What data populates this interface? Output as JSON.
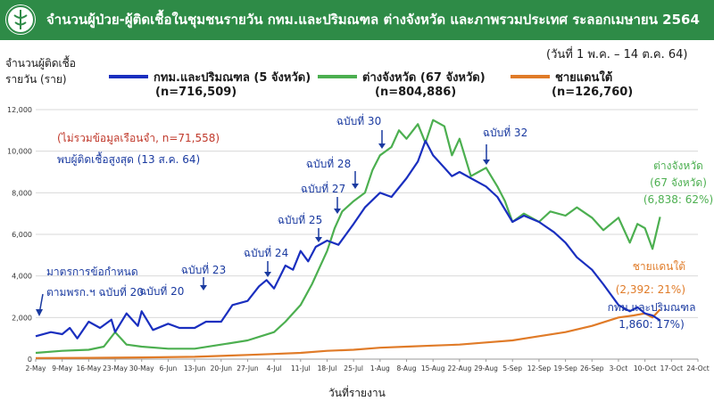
{
  "header": {
    "title": "จำนวนผู้ป่วย-ผู้ติดเชื้อในชุมชนรายวัน กทม.และปริมณฑล ต่างจังหวัด และภาพรวมประเทศ ระลอกเมษายน 2564",
    "bg_color": "#2e8b47"
  },
  "date_range": "(วันที่ 1 พ.ค. – 14 ต.ค. 64)",
  "y_axis_label": {
    "line1": "จำนวนผู้ติดเชื้อ",
    "line2": "รายวัน (ราย)"
  },
  "legend": [
    {
      "name": "กทม.และปริมณฑล (5 จังหวัด)",
      "n": "(n=716,509)",
      "color": "#1a2fbf"
    },
    {
      "name": "ต่างจังหวัด (67 จังหวัด)",
      "n": "(n=804,886)",
      "color": "#4caf50"
    },
    {
      "name": "ชายแดนใต้",
      "n": "(n=126,760)",
      "color": "#e07b28"
    }
  ],
  "notes": {
    "exclude": "(ไม่รวมข้อมูลเรือนจำ, n=71,558)",
    "peak": "พบผู้ติดเชื้อสูงสุด (13 ส.ค. 64)",
    "measure_line1": "มาตรการข้อกำหนด",
    "measure_line2": "ตามพรก.ฯ ฉบับที่ 20"
  },
  "x_axis_title": "วันที่รายงาน",
  "chart_data": {
    "type": "line",
    "ylim": [
      0,
      12000
    ],
    "yticks": [
      0,
      2000,
      4000,
      6000,
      8000,
      10000,
      12000
    ],
    "xticks": [
      "2-May",
      "9-May",
      "16-May",
      "23-May",
      "30-May",
      "6-Jun",
      "13-Jun",
      "20-Jun",
      "27-Jun",
      "4-Jul",
      "11-Jul",
      "18-Jul",
      "25-Jul",
      "1-Aug",
      "8-Aug",
      "15-Aug",
      "22-Aug",
      "29-Aug",
      "5-Sep",
      "12-Sep",
      "19-Sep",
      "26-Sep",
      "3-Oct",
      "10-Oct",
      "17-Oct",
      "24-Oct"
    ],
    "xlabel": "วันที่รายงาน",
    "ylabel": "จำนวนผู้ติดเชื้อรายวัน (ราย)",
    "grid": true,
    "series": [
      {
        "name": "กทม.และปริมณฑล (5 จังหวัด)",
        "color": "#1a2fbf",
        "points": [
          [
            "2-May",
            1100
          ],
          [
            "6-May",
            1300
          ],
          [
            "9-May",
            1200
          ],
          [
            "11-May",
            1500
          ],
          [
            "13-May",
            1000
          ],
          [
            "16-May",
            1800
          ],
          [
            "19-May",
            1500
          ],
          [
            "22-May",
            1900
          ],
          [
            "23-May",
            1300
          ],
          [
            "26-May",
            2200
          ],
          [
            "29-May",
            1600
          ],
          [
            "30-May",
            2300
          ],
          [
            "2-Jun",
            1400
          ],
          [
            "6-Jun",
            1700
          ],
          [
            "9-Jun",
            1500
          ],
          [
            "13-Jun",
            1500
          ],
          [
            "16-Jun",
            1800
          ],
          [
            "20-Jun",
            1800
          ],
          [
            "23-Jun",
            2600
          ],
          [
            "27-Jun",
            2800
          ],
          [
            "30-Jun",
            3500
          ],
          [
            "2-Jul",
            3800
          ],
          [
            "4-Jul",
            3400
          ],
          [
            "7-Jul",
            4500
          ],
          [
            "9-Jul",
            4300
          ],
          [
            "11-Jul",
            5200
          ],
          [
            "13-Jul",
            4700
          ],
          [
            "15-Jul",
            5400
          ],
          [
            "18-Jul",
            5700
          ],
          [
            "21-Jul",
            5500
          ],
          [
            "25-Jul",
            6500
          ],
          [
            "28-Jul",
            7300
          ],
          [
            "1-Aug",
            8000
          ],
          [
            "4-Aug",
            7800
          ],
          [
            "8-Aug",
            8700
          ],
          [
            "11-Aug",
            9500
          ],
          [
            "13-Aug",
            10500
          ],
          [
            "15-Aug",
            9800
          ],
          [
            "18-Aug",
            9200
          ],
          [
            "20-Aug",
            8800
          ],
          [
            "22-Aug",
            9000
          ],
          [
            "25-Aug",
            8700
          ],
          [
            "29-Aug",
            8300
          ],
          [
            "1-Sep",
            7800
          ],
          [
            "5-Sep",
            6600
          ],
          [
            "8-Sep",
            6900
          ],
          [
            "12-Sep",
            6600
          ],
          [
            "16-Sep",
            6100
          ],
          [
            "19-Sep",
            5600
          ],
          [
            "22-Sep",
            4900
          ],
          [
            "26-Sep",
            4300
          ],
          [
            "29-Sep",
            3600
          ],
          [
            "3-Oct",
            2600
          ],
          [
            "6-Oct",
            2300
          ],
          [
            "8-Oct",
            2500
          ],
          [
            "10-Oct",
            2200
          ],
          [
            "12-Oct",
            2100
          ],
          [
            "14-Oct",
            1860
          ]
        ]
      },
      {
        "name": "ต่างจังหวัด (67 จังหวัด)",
        "color": "#4caf50",
        "points": [
          [
            "2-May",
            300
          ],
          [
            "9-May",
            400
          ],
          [
            "16-May",
            450
          ],
          [
            "20-May",
            600
          ],
          [
            "23-May",
            1300
          ],
          [
            "26-May",
            700
          ],
          [
            "30-May",
            600
          ],
          [
            "6-Jun",
            500
          ],
          [
            "13-Jun",
            500
          ],
          [
            "20-Jun",
            700
          ],
          [
            "27-Jun",
            900
          ],
          [
            "4-Jul",
            1300
          ],
          [
            "7-Jul",
            1800
          ],
          [
            "11-Jul",
            2600
          ],
          [
            "14-Jul",
            3600
          ],
          [
            "16-Jul",
            4400
          ],
          [
            "18-Jul",
            5200
          ],
          [
            "20-Jul",
            6300
          ],
          [
            "22-Jul",
            7100
          ],
          [
            "25-Jul",
            7600
          ],
          [
            "28-Jul",
            8000
          ],
          [
            "30-Jul",
            9100
          ],
          [
            "1-Aug",
            9800
          ],
          [
            "4-Aug",
            10200
          ],
          [
            "6-Aug",
            11000
          ],
          [
            "8-Aug",
            10600
          ],
          [
            "11-Aug",
            11300
          ],
          [
            "13-Aug",
            10400
          ],
          [
            "15-Aug",
            11500
          ],
          [
            "18-Aug",
            11200
          ],
          [
            "20-Aug",
            9800
          ],
          [
            "22-Aug",
            10600
          ],
          [
            "25-Aug",
            8800
          ],
          [
            "27-Aug",
            9000
          ],
          [
            "29-Aug",
            9200
          ],
          [
            "1-Sep",
            8300
          ],
          [
            "3-Sep",
            7600
          ],
          [
            "5-Sep",
            6600
          ],
          [
            "8-Sep",
            7000
          ],
          [
            "12-Sep",
            6600
          ],
          [
            "15-Sep",
            7100
          ],
          [
            "19-Sep",
            6900
          ],
          [
            "22-Sep",
            7300
          ],
          [
            "26-Sep",
            6800
          ],
          [
            "29-Sep",
            6200
          ],
          [
            "3-Oct",
            6800
          ],
          [
            "6-Oct",
            5600
          ],
          [
            "8-Oct",
            6500
          ],
          [
            "10-Oct",
            6300
          ],
          [
            "12-Oct",
            5300
          ],
          [
            "14-Oct",
            6838
          ]
        ]
      },
      {
        "name": "ชายแดนใต้",
        "color": "#e07b28",
        "points": [
          [
            "2-May",
            50
          ],
          [
            "16-May",
            60
          ],
          [
            "30-May",
            80
          ],
          [
            "13-Jun",
            110
          ],
          [
            "27-Jun",
            200
          ],
          [
            "4-Jul",
            250
          ],
          [
            "11-Jul",
            300
          ],
          [
            "18-Jul",
            400
          ],
          [
            "25-Jul",
            450
          ],
          [
            "1-Aug",
            550
          ],
          [
            "8-Aug",
            600
          ],
          [
            "15-Aug",
            650
          ],
          [
            "22-Aug",
            700
          ],
          [
            "29-Aug",
            800
          ],
          [
            "5-Sep",
            900
          ],
          [
            "12-Sep",
            1100
          ],
          [
            "19-Sep",
            1300
          ],
          [
            "26-Sep",
            1600
          ],
          [
            "3-Oct",
            2000
          ],
          [
            "7-Oct",
            2100
          ],
          [
            "10-Oct",
            2200
          ],
          [
            "12-Oct",
            2000
          ],
          [
            "14-Oct",
            2392
          ]
        ]
      }
    ],
    "annotations": [
      {
        "text": "ฉบับที่ 23",
        "date": "13-Jun",
        "color": "#1a3aa0"
      },
      {
        "text": "ฉบับที่ 24",
        "date": "2-Jul",
        "color": "#1a3aa0"
      },
      {
        "text": "ฉบับที่ 25",
        "date": "12-Jul",
        "color": "#1a3aa0"
      },
      {
        "text": "ฉบับที่ 27",
        "date": "18-Jul",
        "color": "#1a3aa0"
      },
      {
        "text": "ฉบับที่ 28",
        "date": "21-Jul",
        "color": "#1a3aa0"
      },
      {
        "text": "ฉบับที่ 30",
        "date": "1-Aug",
        "color": "#1a3aa0"
      },
      {
        "text": "ฉบับที่ 32",
        "date": "1-Sep",
        "color": "#1a3aa0"
      },
      {
        "text": "ฉบับที่ 20",
        "date": "2-May",
        "color": "#1a3aa0"
      }
    ],
    "end_labels": [
      {
        "lines": [
          "ต่างจังหวัด",
          "(67 จังหวัด)",
          "(6,838: 62%)"
        ],
        "color": "#4caf50"
      },
      {
        "lines": [
          "ชายแดนใต้",
          "(2,392: 21%)"
        ],
        "color": "#e07b28"
      },
      {
        "lines": [
          "กทม.และปริมณฑล",
          "1,860: 17%)"
        ],
        "color": "#1a3aa0"
      }
    ]
  }
}
